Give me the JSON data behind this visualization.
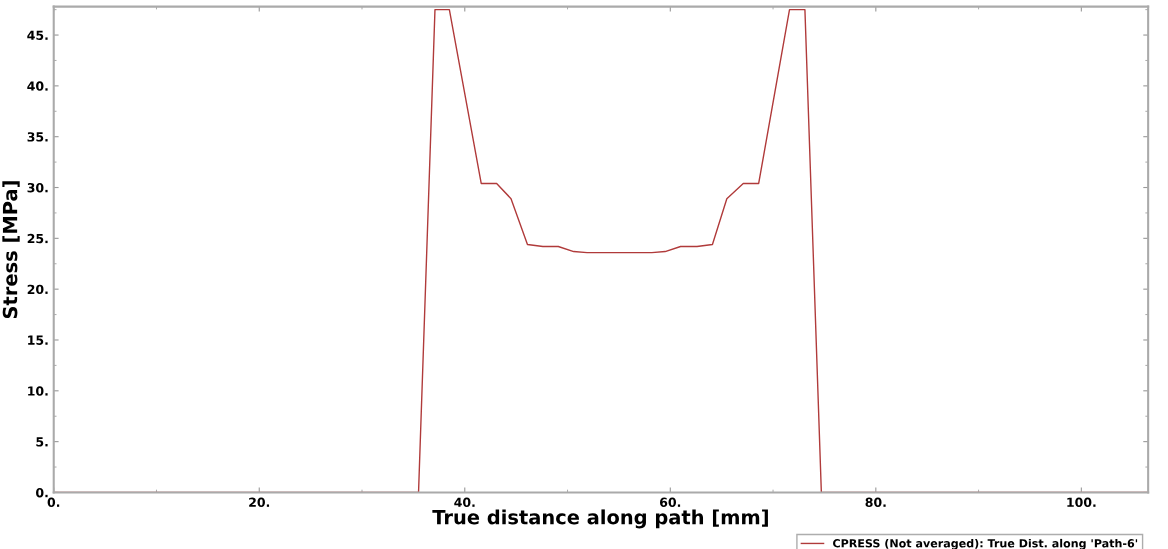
{
  "chart_data": {
    "type": "line",
    "xlabel": "True distance along path [mm]",
    "ylabel": "Stress [MPa]",
    "x": [
      0,
      35.5,
      37.1,
      38.5,
      41.6,
      43.1,
      44.5,
      46.1,
      47.6,
      49.1,
      50.6,
      51.9,
      58.2,
      59.5,
      61.0,
      62.6,
      64.1,
      65.5,
      67.1,
      68.6,
      71.6,
      73.1,
      74.7,
      106.5
    ],
    "series": [
      {
        "name": "CPRESS (Not averaged): True Dist. along 'Path-6'",
        "color": "#b03a3a",
        "values": [
          0,
          0,
          47.5,
          47.5,
          30.4,
          30.4,
          28.9,
          24.4,
          24.2,
          24.2,
          23.7,
          23.6,
          23.6,
          23.7,
          24.2,
          24.2,
          24.4,
          28.9,
          30.4,
          30.4,
          47.5,
          47.5,
          0,
          0
        ]
      }
    ],
    "xlim": [
      0,
      106.5
    ],
    "ylim": [
      0,
      47.8
    ],
    "xticks": [
      {
        "value": 0,
        "label": "0."
      },
      {
        "value": 20,
        "label": "20."
      },
      {
        "value": 40,
        "label": "40."
      },
      {
        "value": 60,
        "label": "60."
      },
      {
        "value": 80,
        "label": "80."
      },
      {
        "value": 100,
        "label": "100."
      }
    ],
    "yticks": [
      {
        "value": 0,
        "label": "0."
      },
      {
        "value": 5,
        "label": "5."
      },
      {
        "value": 10,
        "label": "10."
      },
      {
        "value": 15,
        "label": "15."
      },
      {
        "value": 20,
        "label": "20."
      },
      {
        "value": 25,
        "label": "25."
      },
      {
        "value": 30,
        "label": "30."
      },
      {
        "value": 35,
        "label": "35."
      },
      {
        "value": 40,
        "label": "40."
      },
      {
        "value": 45,
        "label": "45."
      }
    ],
    "grid": false,
    "legend": "bottom right",
    "marker": "none",
    "line_style": "solid"
  }
}
